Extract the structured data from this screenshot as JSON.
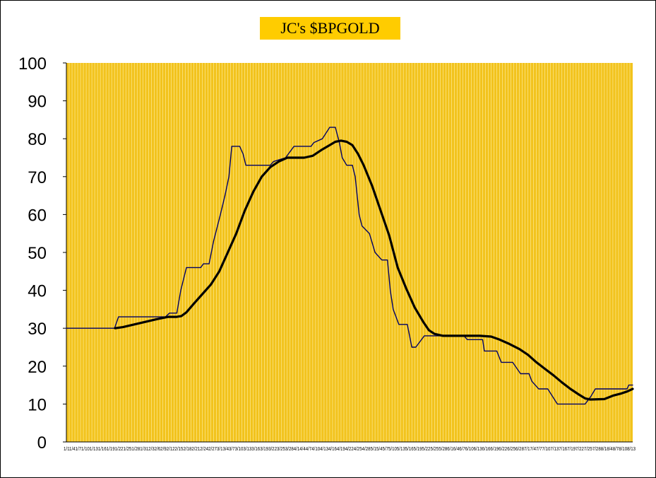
{
  "chart_data": {
    "type": "line",
    "title": "JC's $BPGOLD",
    "xlabel": "",
    "ylabel": "",
    "ylim": [
      0,
      100
    ],
    "yticks": [
      0,
      10,
      20,
      30,
      40,
      50,
      60,
      70,
      80,
      90,
      100
    ],
    "xlim": [
      0,
      100
    ],
    "x_tick_labels_text": "1/11/41/71/101/131/161/191/221/251/281/312/32/62/92/122/152/182/212/242/273/13/43/73/103/133/163/193/223/253/284/14/44/74/104/134/164/194/224/254/285/15/45/75/105/135/165/195/225/255/286/16/46/76/106/136/166/196/226/256/287/17/47/77/107/137/167/197/227/257/288/18/48/78/108/13",
    "grid": true,
    "legend": "none",
    "colors": {
      "plot_background": "#f2c31d",
      "grid": "#fff0a8",
      "title_background": "#ffcc00",
      "series_bpi": "#000066",
      "series_ma": "#000000"
    },
    "series": [
      {
        "values": [
          [
            0,
            30
          ],
          [
            8.5,
            30
          ],
          [
            9.2,
            33
          ],
          [
            17.5,
            33
          ],
          [
            18.2,
            34
          ],
          [
            19.5,
            34
          ],
          [
            20.2,
            40
          ],
          [
            21.2,
            46
          ],
          [
            23.7,
            46
          ],
          [
            24.2,
            47
          ],
          [
            25.2,
            47
          ],
          [
            26,
            53
          ],
          [
            27.2,
            60
          ],
          [
            28,
            65
          ],
          [
            28.7,
            70
          ],
          [
            29.2,
            78
          ],
          [
            30.6,
            78
          ],
          [
            31.2,
            76
          ],
          [
            31.7,
            73
          ],
          [
            36,
            73
          ],
          [
            36.6,
            74
          ],
          [
            38.7,
            75
          ],
          [
            40.2,
            78
          ],
          [
            43.2,
            78
          ],
          [
            43.7,
            79
          ],
          [
            45.2,
            80
          ],
          [
            46.5,
            83
          ],
          [
            47.5,
            83
          ],
          [
            48.2,
            79
          ],
          [
            48.7,
            75
          ],
          [
            49.5,
            73
          ],
          [
            50.5,
            73
          ],
          [
            51,
            70
          ],
          [
            51.7,
            60
          ],
          [
            52.2,
            57
          ],
          [
            53.5,
            55
          ],
          [
            54.5,
            50
          ],
          [
            55.7,
            48
          ],
          [
            56.7,
            48
          ],
          [
            57.2,
            40
          ],
          [
            57.7,
            35
          ],
          [
            58.7,
            31
          ],
          [
            60.2,
            31
          ],
          [
            61,
            25
          ],
          [
            61.7,
            25
          ],
          [
            63.2,
            28
          ],
          [
            70.2,
            28
          ],
          [
            70.8,
            27
          ],
          [
            73.5,
            27
          ],
          [
            73.8,
            24
          ],
          [
            76,
            24
          ],
          [
            76.8,
            21
          ],
          [
            78.8,
            21
          ],
          [
            80.2,
            18
          ],
          [
            81.7,
            18
          ],
          [
            82.2,
            16
          ],
          [
            83.4,
            14
          ],
          [
            85,
            14
          ],
          [
            86.7,
            10
          ],
          [
            91.6,
            10
          ],
          [
            92.6,
            12
          ],
          [
            93.4,
            14
          ],
          [
            99,
            14
          ],
          [
            99.3,
            15
          ],
          [
            100,
            15
          ]
        ]
      },
      {
        "values": [
          [
            8.6,
            30
          ],
          [
            10,
            30.3
          ],
          [
            12,
            31
          ],
          [
            14,
            31.7
          ],
          [
            16,
            32.4
          ],
          [
            18,
            33
          ],
          [
            19.5,
            33
          ],
          [
            20.3,
            33.2
          ],
          [
            21.2,
            34.2
          ],
          [
            22.5,
            36.5
          ],
          [
            24,
            39
          ],
          [
            25.5,
            41.5
          ],
          [
            27,
            45
          ],
          [
            28.5,
            50
          ],
          [
            30,
            55
          ],
          [
            31.5,
            61
          ],
          [
            33,
            66
          ],
          [
            34.5,
            70
          ],
          [
            36,
            72.5
          ],
          [
            37.5,
            74
          ],
          [
            39,
            75
          ],
          [
            42,
            75
          ],
          [
            43.5,
            75.5
          ],
          [
            45,
            77
          ],
          [
            46.5,
            78.3
          ],
          [
            47.5,
            79.2
          ],
          [
            48.5,
            79.5
          ],
          [
            49.5,
            79.2
          ],
          [
            50.5,
            78.3
          ],
          [
            51.5,
            76
          ],
          [
            52.5,
            73
          ],
          [
            54,
            67.5
          ],
          [
            55.5,
            61
          ],
          [
            57,
            54.5
          ],
          [
            58.5,
            46
          ],
          [
            60,
            40.5
          ],
          [
            61.5,
            35.5
          ],
          [
            63,
            31.7
          ],
          [
            64,
            29.5
          ],
          [
            65,
            28.5
          ],
          [
            66.5,
            28
          ],
          [
            70,
            28
          ],
          [
            73,
            28
          ],
          [
            75,
            27.8
          ],
          [
            76.5,
            27
          ],
          [
            78,
            26
          ],
          [
            80,
            24.5
          ],
          [
            81.5,
            23
          ],
          [
            83,
            21
          ],
          [
            84.5,
            19.3
          ],
          [
            86,
            17.6
          ],
          [
            87.5,
            15.7
          ],
          [
            89,
            14
          ],
          [
            90.5,
            12.5
          ],
          [
            91.6,
            11.5
          ],
          [
            92.5,
            11.2
          ],
          [
            95,
            11.3
          ],
          [
            96.5,
            12.2
          ],
          [
            98,
            12.8
          ],
          [
            99,
            13.3
          ],
          [
            100,
            14
          ]
        ]
      }
    ]
  }
}
